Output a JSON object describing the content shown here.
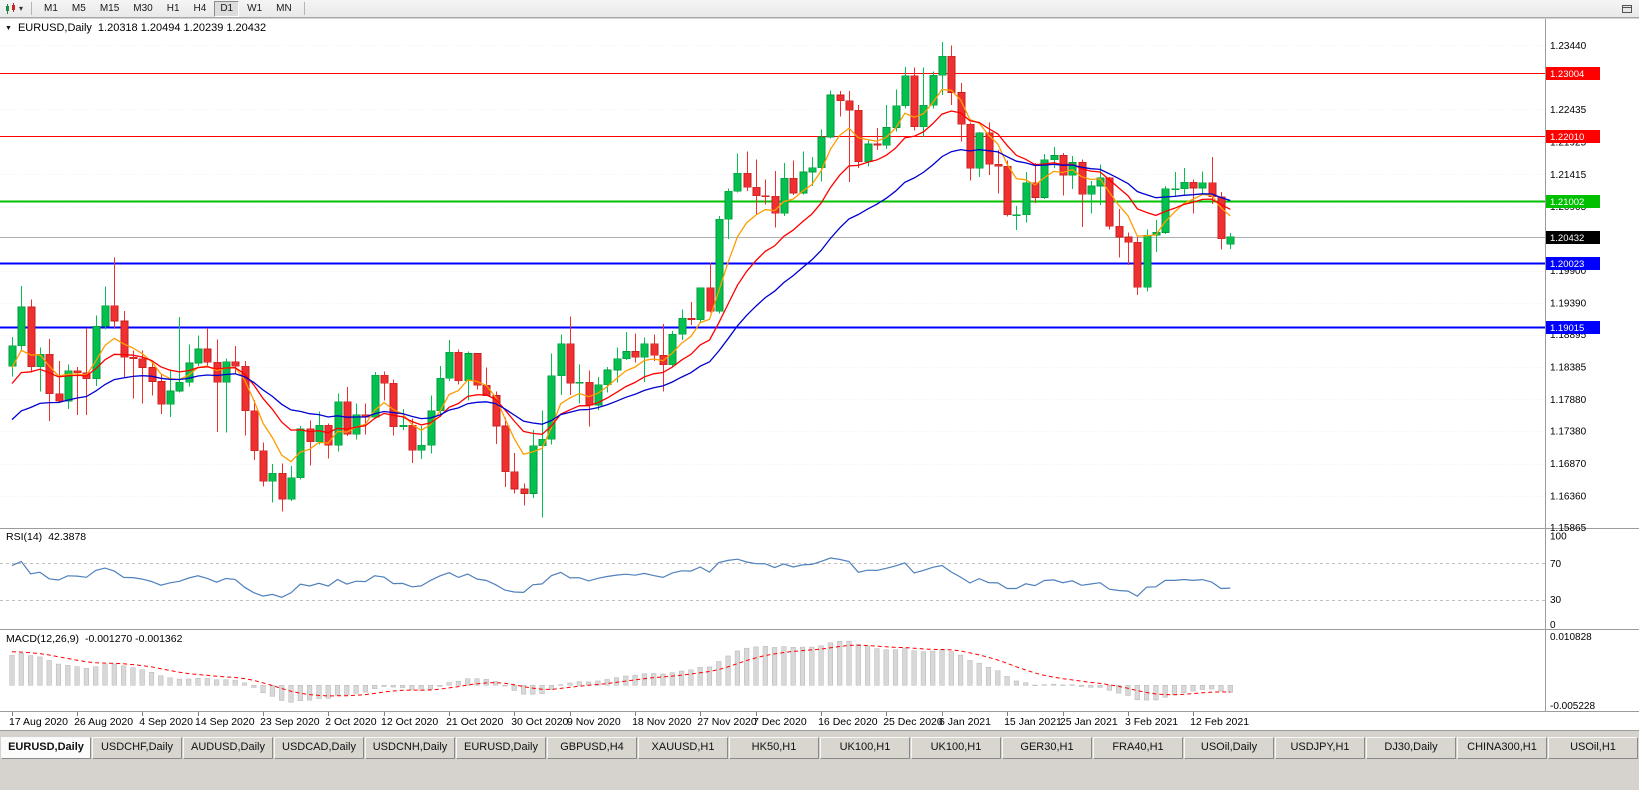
{
  "toolbar": {
    "timeframes": [
      "M1",
      "M5",
      "M15",
      "M30",
      "H1",
      "H4",
      "D1",
      "W1",
      "MN"
    ],
    "selected_timeframe": "D1"
  },
  "chart_header": {
    "title": "EURUSD,Daily",
    "ohlc": "1.20318 1.20494 1.20239 1.20432"
  },
  "chart_data": {
    "type": "candlestick",
    "symbol": "EURUSD",
    "timeframe": "Daily",
    "colors": {
      "up": "#02c14e",
      "up_line": "#019a3c",
      "down": "#f03030",
      "down_line": "#c51f1f",
      "grid": "#f2f2f2"
    },
    "price_axis": {
      "range": [
        1.15858,
        1.2376
      ],
      "labels": [
        "1.23440",
        "1.22435",
        "1.21925",
        "1.21415",
        "1.20905",
        "1.19900",
        "1.19390",
        "1.18895",
        "1.18385",
        "1.17880",
        "1.17380",
        "1.16870",
        "1.16360",
        "1.15865"
      ]
    },
    "hlines": [
      {
        "price": 1.23004,
        "label": "1.23004",
        "color": "#ff0000",
        "width": 1
      },
      {
        "price": 1.2201,
        "label": "1.22010",
        "color": "#ff0000",
        "width": 1
      },
      {
        "price": 1.21002,
        "label": "1.21002",
        "color": "#00c000",
        "width": 2
      },
      {
        "price": 1.20023,
        "label": "1.20023",
        "color": "#0000ff",
        "width": 2
      },
      {
        "price": 1.19015,
        "label": "1.19015",
        "color": "#0000ff",
        "width": 2
      }
    ],
    "current_price": {
      "label": "1.20432",
      "price": 1.20432,
      "line_color": "#b0b0b0",
      "badge_color": "#000000"
    },
    "moving_averages": [
      {
        "period": 6,
        "color": "#ff9c00"
      },
      {
        "period": 13,
        "color": "#ff0000"
      },
      {
        "period": 25,
        "color": "#0000d0"
      }
    ],
    "x_labels": [
      {
        "i": 0,
        "t": "17 Aug 2020"
      },
      {
        "i": 7,
        "t": "26 Aug 2020"
      },
      {
        "i": 14,
        "t": "4 Sep 2020"
      },
      {
        "i": 20,
        "t": "14 Sep 2020"
      },
      {
        "i": 27,
        "t": "23 Sep 2020"
      },
      {
        "i": 34,
        "t": "2 Oct 2020"
      },
      {
        "i": 40,
        "t": "12 Oct 2020"
      },
      {
        "i": 47,
        "t": "21 Oct 2020"
      },
      {
        "i": 54,
        "t": "30 Oct 2020"
      },
      {
        "i": 60,
        "t": "9 Nov 2020"
      },
      {
        "i": 67,
        "t": "18 Nov 2020"
      },
      {
        "i": 74,
        "t": "27 Nov 2020"
      },
      {
        "i": 80,
        "t": "7 Dec 2020"
      },
      {
        "i": 87,
        "t": "16 Dec 2020"
      },
      {
        "i": 94,
        "t": "25 Dec 2020"
      },
      {
        "i": 100,
        "t": "6 Jan 2021"
      },
      {
        "i": 107,
        "t": "15 Jan 2021"
      },
      {
        "i": 113,
        "t": "25 Jan 2021"
      },
      {
        "i": 120,
        "t": "3 Feb 2021"
      },
      {
        "i": 127,
        "t": "12 Feb 2021"
      }
    ],
    "candles": [
      [
        1.184,
        1.1886,
        1.1824,
        1.1872
      ],
      [
        1.1872,
        1.1966,
        1.1864,
        1.1933
      ],
      [
        1.1933,
        1.1945,
        1.183,
        1.1839
      ],
      [
        1.1839,
        1.1869,
        1.18,
        1.1859
      ],
      [
        1.1859,
        1.1883,
        1.1754,
        1.1797
      ],
      [
        1.1797,
        1.1848,
        1.1783,
        1.1785
      ],
      [
        1.1785,
        1.1843,
        1.1773,
        1.1833
      ],
      [
        1.1833,
        1.1839,
        1.1763,
        1.183
      ],
      [
        1.183,
        1.19,
        1.1763,
        1.182
      ],
      [
        1.182,
        1.192,
        1.1809,
        1.1903
      ],
      [
        1.1903,
        1.1965,
        1.1898,
        1.1935
      ],
      [
        1.1935,
        1.2011,
        1.19,
        1.1911
      ],
      [
        1.1911,
        1.1927,
        1.1823,
        1.1854
      ],
      [
        1.1854,
        1.1865,
        1.1789,
        1.1852
      ],
      [
        1.1852,
        1.1865,
        1.1781,
        1.1838
      ],
      [
        1.1838,
        1.1849,
        1.1794,
        1.1816
      ],
      [
        1.1816,
        1.1827,
        1.1765,
        1.178
      ],
      [
        1.178,
        1.1834,
        1.176,
        1.1801
      ],
      [
        1.1801,
        1.1917,
        1.1799,
        1.1815
      ],
      [
        1.1815,
        1.1874,
        1.1808,
        1.1845
      ],
      [
        1.1845,
        1.1888,
        1.184,
        1.1867
      ],
      [
        1.1867,
        1.19,
        1.1839,
        1.1846
      ],
      [
        1.1846,
        1.1882,
        1.1737,
        1.1815
      ],
      [
        1.1815,
        1.1852,
        1.1736,
        1.1847
      ],
      [
        1.1847,
        1.1872,
        1.1827,
        1.184
      ],
      [
        1.184,
        1.1848,
        1.1731,
        1.177
      ],
      [
        1.177,
        1.1787,
        1.1693,
        1.1707
      ],
      [
        1.1707,
        1.172,
        1.1651,
        1.1659
      ],
      [
        1.1659,
        1.1686,
        1.1626,
        1.1672
      ],
      [
        1.1672,
        1.1687,
        1.1612,
        1.1631
      ],
      [
        1.1631,
        1.1683,
        1.1628,
        1.1665
      ],
      [
        1.1665,
        1.1746,
        1.1662,
        1.1742
      ],
      [
        1.1742,
        1.1755,
        1.1684,
        1.1721
      ],
      [
        1.1721,
        1.1769,
        1.1717,
        1.1747
      ],
      [
        1.1747,
        1.175,
        1.1695,
        1.1716
      ],
      [
        1.1716,
        1.1797,
        1.1706,
        1.1784
      ],
      [
        1.1784,
        1.1807,
        1.173,
        1.1733
      ],
      [
        1.1733,
        1.1781,
        1.1725,
        1.1764
      ],
      [
        1.1764,
        1.1781,
        1.1733,
        1.176
      ],
      [
        1.176,
        1.1831,
        1.1758,
        1.1826
      ],
      [
        1.1826,
        1.1832,
        1.1786,
        1.1813
      ],
      [
        1.1813,
        1.1819,
        1.1731,
        1.1745
      ],
      [
        1.1745,
        1.1773,
        1.174,
        1.1747
      ],
      [
        1.1747,
        1.1758,
        1.1688,
        1.1708
      ],
      [
        1.1708,
        1.1746,
        1.1694,
        1.1716
      ],
      [
        1.1716,
        1.1794,
        1.1703,
        1.177
      ],
      [
        1.177,
        1.184,
        1.176,
        1.1821
      ],
      [
        1.1821,
        1.1881,
        1.1817,
        1.1862
      ],
      [
        1.1862,
        1.1866,
        1.1811,
        1.1817
      ],
      [
        1.1817,
        1.1863,
        1.1786,
        1.186
      ],
      [
        1.186,
        1.1861,
        1.1803,
        1.181
      ],
      [
        1.181,
        1.1838,
        1.1794,
        1.1794
      ],
      [
        1.1794,
        1.18,
        1.1718,
        1.1746
      ],
      [
        1.1746,
        1.1759,
        1.165,
        1.1674
      ],
      [
        1.1674,
        1.1704,
        1.164,
        1.1647
      ],
      [
        1.1647,
        1.1656,
        1.1621,
        1.164
      ],
      [
        1.164,
        1.174,
        1.1633,
        1.1715
      ],
      [
        1.1715,
        1.177,
        1.1602,
        1.1725
      ],
      [
        1.1725,
        1.186,
        1.1717,
        1.1825
      ],
      [
        1.1825,
        1.189,
        1.1795,
        1.1875
      ],
      [
        1.1875,
        1.1918,
        1.1795,
        1.1813
      ],
      [
        1.1813,
        1.1843,
        1.1781,
        1.1815
      ],
      [
        1.1815,
        1.1833,
        1.1745,
        1.1779
      ],
      [
        1.1779,
        1.1823,
        1.1771,
        1.1811
      ],
      [
        1.1811,
        1.1839,
        1.1799,
        1.1834
      ],
      [
        1.1834,
        1.1869,
        1.1814,
        1.1852
      ],
      [
        1.1852,
        1.1894,
        1.185,
        1.1863
      ],
      [
        1.1863,
        1.1891,
        1.1846,
        1.1854
      ],
      [
        1.1854,
        1.1885,
        1.1815,
        1.1875
      ],
      [
        1.1875,
        1.189,
        1.1848,
        1.1857
      ],
      [
        1.1857,
        1.1906,
        1.18,
        1.1842
      ],
      [
        1.1842,
        1.1895,
        1.1838,
        1.189
      ],
      [
        1.189,
        1.1929,
        1.1881,
        1.1915
      ],
      [
        1.1915,
        1.1941,
        1.1905,
        1.1913
      ],
      [
        1.1913,
        1.1964,
        1.1908,
        1.1963
      ],
      [
        1.1963,
        1.2003,
        1.1924,
        1.1926
      ],
      [
        1.1926,
        1.2076,
        1.1923,
        1.2071
      ],
      [
        1.2071,
        1.2119,
        1.204,
        1.2115
      ],
      [
        1.2115,
        1.2174,
        1.2113,
        1.2143
      ],
      [
        1.2143,
        1.2177,
        1.2115,
        1.2121
      ],
      [
        1.2121,
        1.2165,
        1.2079,
        1.2108
      ],
      [
        1.2108,
        1.2133,
        1.2094,
        1.2107
      ],
      [
        1.2107,
        1.2147,
        1.2058,
        1.208
      ],
      [
        1.208,
        1.2159,
        1.2076,
        1.2135
      ],
      [
        1.2135,
        1.2163,
        1.2109,
        1.2112
      ],
      [
        1.2112,
        1.2177,
        1.211,
        1.2145
      ],
      [
        1.2145,
        1.2169,
        1.2123,
        1.2152
      ],
      [
        1.2152,
        1.2212,
        1.213,
        1.22
      ],
      [
        1.22,
        1.2273,
        1.2198,
        1.2266
      ],
      [
        1.2266,
        1.2272,
        1.2232,
        1.2257
      ],
      [
        1.2257,
        1.2272,
        1.2129,
        1.2242
      ],
      [
        1.2242,
        1.225,
        1.2151,
        1.2161
      ],
      [
        1.2161,
        1.2195,
        1.2154,
        1.2189
      ],
      [
        1.2189,
        1.2214,
        1.218,
        1.2187
      ],
      [
        1.2187,
        1.225,
        1.2181,
        1.2215
      ],
      [
        1.2215,
        1.2275,
        1.2209,
        1.2249
      ],
      [
        1.2249,
        1.231,
        1.2245,
        1.2296
      ],
      [
        1.2296,
        1.2309,
        1.221,
        1.2216
      ],
      [
        1.2216,
        1.2309,
        1.22,
        1.225
      ],
      [
        1.225,
        1.2303,
        1.2245,
        1.2297
      ],
      [
        1.2297,
        1.2349,
        1.2266,
        1.2327
      ],
      [
        1.2327,
        1.2344,
        1.225,
        1.227
      ],
      [
        1.227,
        1.2285,
        1.2193,
        1.222
      ],
      [
        1.222,
        1.2223,
        1.2132,
        1.2151
      ],
      [
        1.2151,
        1.2208,
        1.2137,
        1.2207
      ],
      [
        1.2207,
        1.2223,
        1.214,
        1.2157
      ],
      [
        1.2157,
        1.218,
        1.2111,
        1.2154
      ],
      [
        1.2154,
        1.2163,
        1.2075,
        1.2078
      ],
      [
        1.2078,
        1.2092,
        1.2054,
        1.2078
      ],
      [
        1.2078,
        1.2145,
        1.2066,
        1.2128
      ],
      [
        1.2128,
        1.2159,
        1.2096,
        1.2105
      ],
      [
        1.2105,
        1.2173,
        1.2103,
        1.2164
      ],
      [
        1.2164,
        1.2184,
        1.2151,
        1.2171
      ],
      [
        1.2171,
        1.2175,
        1.2108,
        1.214
      ],
      [
        1.214,
        1.217,
        1.2118,
        1.216
      ],
      [
        1.216,
        1.2165,
        1.2059,
        1.211
      ],
      [
        1.211,
        1.2131,
        1.208,
        1.2123
      ],
      [
        1.2123,
        1.2157,
        1.2093,
        1.2136
      ],
      [
        1.2136,
        1.2137,
        1.2055,
        1.206
      ],
      [
        1.206,
        1.2087,
        1.2011,
        1.2043
      ],
      [
        1.2043,
        1.205,
        1.1999,
        1.2035
      ],
      [
        1.2035,
        1.2043,
        1.1952,
        1.1964
      ],
      [
        1.1964,
        1.2055,
        1.1957,
        1.2046
      ],
      [
        1.2046,
        1.207,
        1.2019,
        1.205
      ],
      [
        1.205,
        1.2123,
        1.2048,
        1.2119
      ],
      [
        1.2119,
        1.2145,
        1.2107,
        1.2119
      ],
      [
        1.2119,
        1.2151,
        1.211,
        1.2129
      ],
      [
        1.2129,
        1.2133,
        1.208,
        1.212
      ],
      [
        1.212,
        1.2146,
        1.2109,
        1.2128
      ],
      [
        1.2128,
        1.2169,
        1.2095,
        1.2106
      ],
      [
        1.2106,
        1.2114,
        1.2023,
        1.204
      ],
      [
        1.20318,
        1.20494,
        1.20239,
        1.20432
      ]
    ],
    "indicator_warmup_closes": [
      1.125,
      1.1252,
      1.1245,
      1.1268,
      1.128,
      1.1302,
      1.133,
      1.1325,
      1.1308,
      1.133,
      1.1339,
      1.1402,
      1.143,
      1.1442,
      1.144,
      1.1465,
      1.151,
      1.154,
      1.159,
      1.1651,
      1.1705,
      1.1748,
      1.172,
      1.1771,
      1.1785,
      1.1742,
      1.178,
      1.1762,
      1.181,
      1.1868,
      1.191,
      1.1782,
      1.1755,
      1.176,
      1.174,
      1.1735,
      1.1786,
      1.181,
      1.1792,
      1.179,
      1.1815,
      1.183,
      1.185,
      1.1815,
      1.1842
    ],
    "rsi": {
      "label": "RSI(14)",
      "value": "42.3878",
      "period": 14,
      "range": [
        0,
        100
      ],
      "axis_labels": [
        {
          "v": 100,
          "t": "100"
        },
        {
          "v": 70,
          "t": "70"
        },
        {
          "v": 30,
          "t": "30"
        },
        {
          "v": 0,
          "t": "0"
        }
      ],
      "dotted_levels": [
        70,
        30
      ],
      "color": "#4f81bd"
    },
    "macd": {
      "label": "MACD(12,26,9)",
      "values_text": "-0.001270 -0.001362",
      "fast": 12,
      "slow": 26,
      "signal": 9,
      "range": [
        -0.005228,
        0.010828
      ],
      "axis_top": "0.010828",
      "axis_bottom": "-0.005228",
      "hist_color": "#d8d8d8",
      "hist_line": "#b5b5b5",
      "signal_color": "#ff0000"
    }
  },
  "tab_bar": {
    "active_index": 0,
    "tabs": [
      "EURUSD,Daily",
      "USDCHF,Daily",
      "AUDUSD,Daily",
      "USDCAD,Daily",
      "USDCNH,Daily",
      "EURUSD,Daily",
      "GBPUSD,H4",
      "XAUUSD,H1",
      "HK50,H1",
      "UK100,H1",
      "UK100,H1",
      "GER30,H1",
      "FRA40,H1",
      "USOil,Daily",
      "USDJPY,H1",
      "DJ30,Daily",
      "CHINA300,H1",
      "USOil,H1"
    ]
  }
}
